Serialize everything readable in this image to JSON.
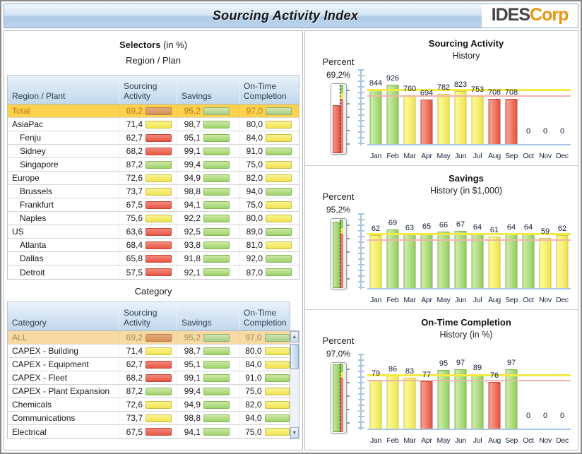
{
  "header": {
    "title": "Sourcing Activity Index",
    "logo_primary": "IDES",
    "logo_secondary": "Corp"
  },
  "selectors": {
    "heading_bold": "Selectors",
    "heading_note": " (in %)",
    "region_table": {
      "subtitle": "Region / Plan",
      "columns": [
        "Region / Plant",
        "Sourcing\nActivity",
        "Savings",
        "On-Time\nCompletion"
      ],
      "rows": [
        {
          "label": "Total",
          "indent": false,
          "highlight": "total",
          "values": [
            {
              "v": "69,2",
              "c": "orange"
            },
            {
              "v": "95,2",
              "c": "green"
            },
            {
              "v": "97,0",
              "c": "green"
            }
          ]
        },
        {
          "label": "AsiaPac",
          "indent": false,
          "highlight": null,
          "values": [
            {
              "v": "71,4",
              "c": "yellow"
            },
            {
              "v": "98,7",
              "c": "green"
            },
            {
              "v": "80,0",
              "c": "yellow"
            }
          ]
        },
        {
          "label": "Fenju",
          "indent": true,
          "highlight": null,
          "values": [
            {
              "v": "62,7",
              "c": "red"
            },
            {
              "v": "95,1",
              "c": "green"
            },
            {
              "v": "84,0",
              "c": "yellow"
            }
          ]
        },
        {
          "label": "Sidney",
          "indent": true,
          "highlight": null,
          "values": [
            {
              "v": "68,2",
              "c": "red"
            },
            {
              "v": "99,1",
              "c": "green"
            },
            {
              "v": "91,0",
              "c": "green"
            }
          ]
        },
        {
          "label": "Singapore",
          "indent": true,
          "highlight": null,
          "values": [
            {
              "v": "87,2",
              "c": "green"
            },
            {
              "v": "99,4",
              "c": "green"
            },
            {
              "v": "75,0",
              "c": "yellow"
            }
          ]
        },
        {
          "label": "Europe",
          "indent": false,
          "highlight": null,
          "values": [
            {
              "v": "72,6",
              "c": "yellow"
            },
            {
              "v": "94,9",
              "c": "green"
            },
            {
              "v": "82,0",
              "c": "yellow"
            }
          ]
        },
        {
          "label": "Brussels",
          "indent": true,
          "highlight": null,
          "values": [
            {
              "v": "73,7",
              "c": "yellow"
            },
            {
              "v": "98,8",
              "c": "green"
            },
            {
              "v": "94,0",
              "c": "green"
            }
          ]
        },
        {
          "label": "Frankfurt",
          "indent": true,
          "highlight": null,
          "values": [
            {
              "v": "67,5",
              "c": "red"
            },
            {
              "v": "94,1",
              "c": "green"
            },
            {
              "v": "75,0",
              "c": "yellow"
            }
          ]
        },
        {
          "label": "Naples",
          "indent": true,
          "highlight": null,
          "values": [
            {
              "v": "75,6",
              "c": "yellow"
            },
            {
              "v": "92,2",
              "c": "green"
            },
            {
              "v": "80,0",
              "c": "yellow"
            }
          ]
        },
        {
          "label": "US",
          "indent": false,
          "highlight": null,
          "values": [
            {
              "v": "63,6",
              "c": "red"
            },
            {
              "v": "92,5",
              "c": "green"
            },
            {
              "v": "89,0",
              "c": "green"
            }
          ]
        },
        {
          "label": "Atlanta",
          "indent": true,
          "highlight": null,
          "values": [
            {
              "v": "68,4",
              "c": "red"
            },
            {
              "v": "93,8",
              "c": "green"
            },
            {
              "v": "81,0",
              "c": "yellow"
            }
          ]
        },
        {
          "label": "Dallas",
          "indent": true,
          "highlight": null,
          "values": [
            {
              "v": "65,8",
              "c": "red"
            },
            {
              "v": "91,8",
              "c": "green"
            },
            {
              "v": "92,0",
              "c": "green"
            }
          ]
        },
        {
          "label": "Detroit",
          "indent": true,
          "highlight": null,
          "values": [
            {
              "v": "57,5",
              "c": "red"
            },
            {
              "v": "92,1",
              "c": "green"
            },
            {
              "v": "87,0",
              "c": "green"
            }
          ]
        }
      ]
    },
    "category_table": {
      "subtitle": "Category",
      "columns": [
        "Category",
        "Sourcing\nActivity",
        "Savings",
        "On-Time\nCompletion"
      ],
      "rows": [
        {
          "label": "ALL",
          "indent": false,
          "highlight": "all",
          "values": [
            {
              "v": "69,2",
              "c": "orange"
            },
            {
              "v": "95,2",
              "c": "green"
            },
            {
              "v": "97,0",
              "c": "green"
            }
          ]
        },
        {
          "label": "CAPEX - Building",
          "indent": false,
          "highlight": null,
          "values": [
            {
              "v": "71,4",
              "c": "yellow"
            },
            {
              "v": "98,7",
              "c": "green"
            },
            {
              "v": "80,0",
              "c": "yellow"
            }
          ]
        },
        {
          "label": "CAPEX - Equipment",
          "indent": false,
          "highlight": null,
          "values": [
            {
              "v": "62,7",
              "c": "red"
            },
            {
              "v": "95,1",
              "c": "green"
            },
            {
              "v": "84,0",
              "c": "yellow"
            }
          ]
        },
        {
          "label": "CAPEX - Fleet",
          "indent": false,
          "highlight": null,
          "values": [
            {
              "v": "68,2",
              "c": "red"
            },
            {
              "v": "99,1",
              "c": "green"
            },
            {
              "v": "91,0",
              "c": "green"
            }
          ]
        },
        {
          "label": "CAPEX - Plant Expansion",
          "indent": false,
          "highlight": null,
          "values": [
            {
              "v": "87,2",
              "c": "green"
            },
            {
              "v": "99,4",
              "c": "green"
            },
            {
              "v": "75,0",
              "c": "yellow"
            }
          ]
        },
        {
          "label": "Chemicals",
          "indent": false,
          "highlight": null,
          "values": [
            {
              "v": "72,6",
              "c": "yellow"
            },
            {
              "v": "94,9",
              "c": "green"
            },
            {
              "v": "82,0",
              "c": "yellow"
            }
          ]
        },
        {
          "label": "Communications",
          "indent": false,
          "highlight": null,
          "values": [
            {
              "v": "73,7",
              "c": "yellow"
            },
            {
              "v": "98,8",
              "c": "green"
            },
            {
              "v": "94,0",
              "c": "green"
            }
          ]
        },
        {
          "label": "Electrical",
          "indent": false,
          "highlight": null,
          "values": [
            {
              "v": "67,5",
              "c": "red"
            },
            {
              "v": "94,1",
              "c": "green"
            },
            {
              "v": "75,0",
              "c": "yellow"
            }
          ]
        }
      ],
      "scroll_up_icon": "▲",
      "scroll_down_icon": "▼"
    }
  },
  "chart_data": [
    {
      "type": "bar",
      "title": "Sourcing Activity",
      "subtitle": "History",
      "gauge_label": "Percent",
      "gauge_value": "69,2%",
      "gauge_pct": 69.2,
      "gauge_fill": "red",
      "categories": [
        "Jan",
        "Feb",
        "Mar",
        "Apr",
        "May",
        "Jun",
        "Jul",
        "Aug",
        "Sep",
        "Oct",
        "Nov",
        "Dec"
      ],
      "values": [
        844,
        926,
        760,
        694,
        782,
        823,
        753,
        708,
        708,
        0,
        0,
        0
      ],
      "bar_colors": [
        "green",
        "green",
        "yellow",
        "red",
        "yellow",
        "yellow",
        "yellow",
        "red",
        "red",
        null,
        null,
        null
      ],
      "ylim": [
        0,
        1100
      ],
      "threshold_yellow": 820,
      "threshold_red": 740,
      "legend": "none",
      "grid": "off"
    },
    {
      "type": "bar",
      "title": "Savings",
      "subtitle": "History (in $1,000)",
      "gauge_label": "Percent",
      "gauge_value": "95,2%",
      "gauge_pct": 95.2,
      "gauge_fill": "green",
      "categories": [
        "Jan",
        "Feb",
        "Mar",
        "Apr",
        "May",
        "Jun",
        "Jul",
        "Aug",
        "Sep",
        "Oct",
        "Nov",
        "Dec"
      ],
      "values": [
        62,
        69,
        63,
        65,
        66,
        67,
        64,
        61,
        64,
        64,
        59,
        62
      ],
      "bar_colors": [
        "yellow",
        "green",
        "green",
        "green",
        "green",
        "green",
        "green",
        "yellow",
        "green",
        "green",
        "yellow",
        "yellow"
      ],
      "ylim": [
        0,
        83
      ],
      "threshold_yellow": 62,
      "threshold_red": 56,
      "legend": "none",
      "grid": "off"
    },
    {
      "type": "bar",
      "title": "On-Time Completion",
      "subtitle": "History (in %)",
      "gauge_label": "Percent",
      "gauge_value": "97,0%",
      "gauge_pct": 97.0,
      "gauge_fill": "green",
      "categories": [
        "Jan",
        "Feb",
        "Mar",
        "Apr",
        "May",
        "Jun",
        "Jul",
        "Aug",
        "Sep",
        "Oct",
        "Nov",
        "Dec"
      ],
      "values": [
        79,
        86,
        83,
        77,
        95,
        97,
        89,
        76,
        97,
        0,
        0,
        0
      ],
      "bar_colors": [
        "yellow",
        "yellow",
        "yellow",
        "red",
        "green",
        "green",
        "green",
        "red",
        "green",
        null,
        null,
        null
      ],
      "ylim": [
        0,
        115
      ],
      "threshold_yellow": 85,
      "threshold_red": 77.5,
      "legend": "none",
      "grid": "off"
    }
  ],
  "colors": {
    "kpi_green": "#9ed36a",
    "kpi_yellow": "#f0e351",
    "kpi_red": "#e95544",
    "kpi_orange": "#ee8c3d",
    "threshold_yellow_line": "#f3ea45",
    "threshold_red_line": "#f0b4aa",
    "header_blue": "#bcd5ec",
    "logo_orange": "#e9930e",
    "highlight_total_row": "#ffd24d",
    "highlight_all_row": "#f7d9a4"
  }
}
